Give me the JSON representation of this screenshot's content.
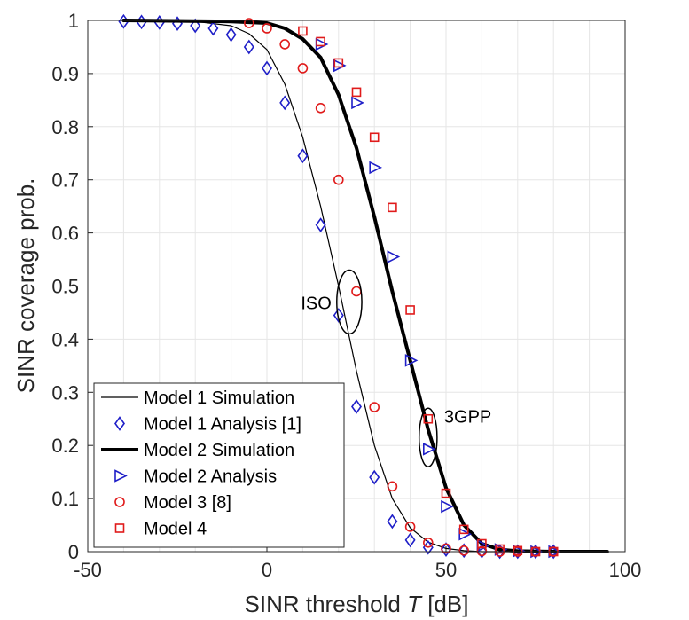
{
  "chart_data": {
    "type": "line",
    "xlabel": "SINR threshold",
    "xlabel_symbol": "T",
    "xlabel_unit": "[dB]",
    "ylabel": "SINR coverage prob.",
    "xlim": [
      -50,
      100
    ],
    "ylim": [
      0,
      1
    ],
    "xticks": [
      -50,
      0,
      50,
      100
    ],
    "yticks": [
      0,
      0.1,
      0.2,
      0.3,
      0.4,
      0.5,
      0.6,
      0.7,
      0.8,
      0.9,
      1
    ],
    "grid": true,
    "legend_position": "bottom-left",
    "colors": {
      "blue": "#1f1fc8",
      "red": "#e01b1b",
      "black": "#000000",
      "grid": "#e6e6e6"
    },
    "series": [
      {
        "name": "Model 1 Simulation",
        "style": "line-thin",
        "color": "#000000",
        "x": [
          -40,
          -20,
          -10,
          -5,
          0,
          5,
          10,
          15,
          20,
          25,
          30,
          35,
          40,
          45,
          50,
          55,
          60,
          70,
          80,
          95
        ],
        "y": [
          1.0,
          0.998,
          0.99,
          0.975,
          0.945,
          0.88,
          0.78,
          0.65,
          0.5,
          0.34,
          0.2,
          0.1,
          0.045,
          0.018,
          0.006,
          0.002,
          0.0,
          0.0,
          0.0,
          0.0
        ]
      },
      {
        "name": "Model 1 Analysis [1]",
        "style": "marker-diamond",
        "color": "#1f1fc8",
        "x": [
          -40,
          -35,
          -30,
          -25,
          -20,
          -15,
          -10,
          -5,
          0,
          5,
          10,
          15,
          20,
          25,
          30,
          35,
          40,
          45,
          50,
          55,
          60,
          65,
          70,
          75,
          80
        ],
        "y": [
          0.998,
          0.997,
          0.996,
          0.994,
          0.99,
          0.985,
          0.973,
          0.95,
          0.91,
          0.845,
          0.745,
          0.615,
          0.445,
          0.273,
          0.14,
          0.057,
          0.022,
          0.008,
          0.004,
          0.002,
          0.001,
          0.0,
          0.0,
          0.0,
          0.0
        ]
      },
      {
        "name": "Model 2 Simulation",
        "style": "line-thick",
        "color": "#000000",
        "x": [
          -40,
          -10,
          0,
          5,
          10,
          15,
          20,
          25,
          30,
          35,
          40,
          45,
          50,
          55,
          60,
          65,
          70,
          80,
          95
        ],
        "y": [
          1.0,
          0.998,
          0.995,
          0.985,
          0.965,
          0.93,
          0.86,
          0.76,
          0.63,
          0.49,
          0.36,
          0.23,
          0.12,
          0.05,
          0.015,
          0.004,
          0.001,
          0.0,
          0.0
        ]
      },
      {
        "name": "Model 2 Analysis",
        "style": "marker-triangle-right",
        "color": "#1f1fc8",
        "x": [
          15,
          20,
          25,
          30,
          35,
          40,
          45,
          50,
          55,
          60,
          65,
          70,
          75,
          80
        ],
        "y": [
          0.955,
          0.915,
          0.845,
          0.723,
          0.555,
          0.36,
          0.193,
          0.085,
          0.033,
          0.011,
          0.004,
          0.001,
          0.0,
          0.0
        ]
      },
      {
        "name": "Model 3 [8]",
        "style": "marker-circle",
        "color": "#e01b1b",
        "x": [
          -5,
          0,
          5,
          10,
          15,
          20,
          25,
          30,
          35,
          40,
          45,
          50,
          55,
          60,
          65,
          70,
          75,
          80
        ],
        "y": [
          0.995,
          0.985,
          0.955,
          0.91,
          0.835,
          0.7,
          0.49,
          0.272,
          0.123,
          0.047,
          0.017,
          0.006,
          0.002,
          0.001,
          0.0,
          0.0,
          0.0,
          0.0
        ]
      },
      {
        "name": "Model 4",
        "style": "marker-square",
        "color": "#e01b1b",
        "x": [
          10,
          15,
          20,
          25,
          30,
          35,
          40,
          45,
          50,
          55,
          60,
          65,
          70,
          75,
          80
        ],
        "y": [
          0.98,
          0.96,
          0.92,
          0.865,
          0.78,
          0.648,
          0.455,
          0.25,
          0.11,
          0.042,
          0.015,
          0.005,
          0.002,
          0.0,
          0.0
        ]
      }
    ],
    "annotations": [
      {
        "text": "ISO",
        "ellipse": {
          "cx": 23,
          "cy": 0.47,
          "rx": 3.5,
          "ry": 0.06
        }
      },
      {
        "text": "3GPP",
        "ellipse": {
          "cx": 45,
          "cy": 0.215,
          "rx": 2.5,
          "ry": 0.055
        }
      }
    ]
  }
}
